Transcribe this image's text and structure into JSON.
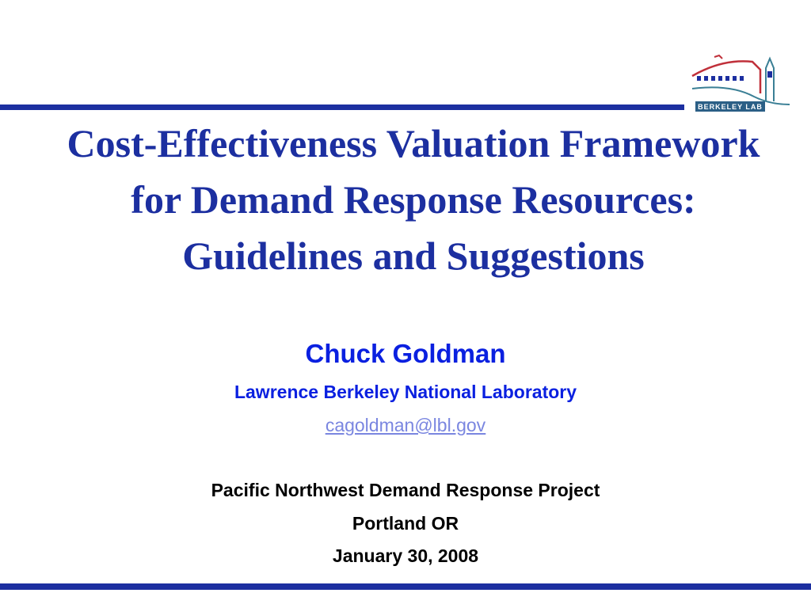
{
  "slide": {
    "title": "Cost-Effectiveness Valuation Framework for Demand Response Resources: Guidelines and Suggestions",
    "author": "Chuck Goldman",
    "organization": "Lawrence Berkeley National Laboratory",
    "email": "cagoldman@lbl.gov",
    "event": "Pacific Northwest Demand Response Project",
    "location": "Portland OR",
    "date": "January 30, 2008"
  },
  "logo": {
    "text": "Berkeley Lab",
    "icon": "berkeley-lab-logo"
  },
  "colors": {
    "accent": "#1c2fa0",
    "subtitle": "#0a20e0",
    "logo_red": "#c0303a",
    "logo_teal": "#3a7f95"
  }
}
